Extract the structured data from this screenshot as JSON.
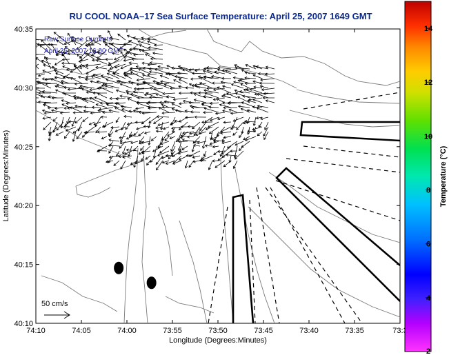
{
  "title": "RU COOL  NOAA–17  Sea Surface Temperature:  April 25, 2007 1649 GMT",
  "overlay": {
    "line1": "Raw Surface Currents",
    "line2": "April 25, 2007 16:00 GMT"
  },
  "scale_arrow": {
    "label": "50 cm/s"
  },
  "colorbar": {
    "label": "Temperature (°C)",
    "ticks": [
      "2",
      "4",
      "6",
      "8",
      "10",
      "12",
      "14"
    ],
    "min": 2,
    "max": 15
  },
  "map": {
    "xlabel": "Longitude (Degrees:Minutes)",
    "ylabel": "Latitude (Degrees:Minutes)",
    "x_ticks": [
      "74:10",
      "74:05",
      "74:00",
      "73:55",
      "73:50",
      "73:45",
      "73:40",
      "73:35",
      "73:3"
    ],
    "y_ticks": [
      "40:35",
      "40:30",
      "40:25",
      "40:20",
      "40:15",
      "40:10"
    ],
    "xlim": [
      -74.1667,
      -73.5
    ],
    "ylim": [
      40.1667,
      40.5833
    ],
    "markers": [
      {
        "name": "marker-west",
        "lon": -74.015,
        "lat": 40.245
      },
      {
        "name": "marker-east",
        "lon": -73.955,
        "lat": 40.224
      }
    ],
    "colors": {
      "land_line": "#7a7a7a",
      "frame": "#000000",
      "arrows": "#000000"
    }
  }
}
